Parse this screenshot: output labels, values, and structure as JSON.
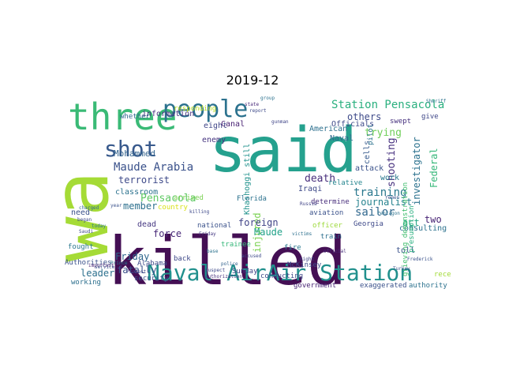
{
  "title": "2019-12",
  "words": [
    {
      "text": "said",
      "color": "#25a18e"
    },
    {
      "text": "killed",
      "color": "#440f54"
    },
    {
      "text": "wa",
      "color": "#a5db36"
    },
    {
      "text": "three",
      "color": "#3aba76"
    },
    {
      "text": "people",
      "color": "#2c728e"
    },
    {
      "text": "shot",
      "color": "#38598c"
    },
    {
      "text": "Naval AirAir Station",
      "color": "#21908d"
    },
    {
      "text": "Station Pensacola",
      "color": "#2ab07f"
    },
    {
      "text": "Maude Arabia",
      "color": "#3b528b"
    },
    {
      "text": "training",
      "color": "#2a788e"
    },
    {
      "text": "sailor",
      "color": "#31688e"
    },
    {
      "text": "shooting",
      "color": "#46307e"
    },
    {
      "text": "death",
      "color": "#472d7b"
    },
    {
      "text": "Pensacola",
      "color": "#5ec962"
    },
    {
      "text": "trying",
      "color": "#6ece58"
    },
    {
      "text": "Mohammed",
      "color": "#33638d"
    },
    {
      "text": "terrorist",
      "color": "#3e4a89"
    },
    {
      "text": "injured",
      "color": "#7ad151"
    },
    {
      "text": "Friday",
      "color": "#31688e"
    },
    {
      "text": "fatally",
      "color": "#3b528b"
    },
    {
      "text": "member",
      "color": "#2d708e"
    },
    {
      "text": "force",
      "color": "#482878"
    },
    {
      "text": "leader",
      "color": "#2d708e"
    },
    {
      "text": "Maude",
      "color": "#1fa188"
    },
    {
      "text": "foreign",
      "color": "#414487"
    },
    {
      "text": "journalist",
      "color": "#26828e"
    },
    {
      "text": "investigator",
      "color": "#2c728e"
    },
    {
      "text": "others",
      "color": "#3e4a89"
    },
    {
      "text": "information",
      "color": "#46327e"
    },
    {
      "text": "enemy",
      "color": "#463480"
    },
    {
      "text": "eight",
      "color": "#404688"
    },
    {
      "text": "classroom",
      "color": "#2c728e"
    },
    {
      "text": "dead",
      "color": "#453781"
    },
    {
      "text": "need",
      "color": "#3b528b"
    },
    {
      "text": "whether",
      "color": "#31688e"
    },
    {
      "text": "Canal",
      "color": "#482173"
    },
    {
      "text": "American",
      "color": "#2d708e"
    },
    {
      "text": "Khashoggi still",
      "color": "#20928c"
    },
    {
      "text": "attack",
      "color": "#3b528b"
    },
    {
      "text": "Iraqi",
      "color": "#3e4989"
    },
    {
      "text": "act",
      "color": "#22a785"
    },
    {
      "text": "two",
      "color": "#482475"
    },
    {
      "text": "Federal",
      "color": "#35b779"
    },
    {
      "text": "consulting",
      "color": "#2c728e"
    },
    {
      "text": "Naval",
      "color": "#30698e"
    },
    {
      "text": "work",
      "color": "#2a788e"
    },
    {
      "text": "cells",
      "color": "#375b8d"
    },
    {
      "text": "Georgia",
      "color": "#3e4989"
    },
    {
      "text": "toll",
      "color": "#3b528b"
    },
    {
      "text": "government",
      "color": "#482475"
    },
    {
      "text": "exaggerated",
      "color": "#3b528b"
    },
    {
      "text": "authority",
      "color": "#2c728e"
    },
    {
      "text": "recently",
      "color": "#a2da37"
    },
    {
      "text": "grieving demonstration",
      "color": "#44bf70"
    },
    {
      "text": "presumption",
      "color": "#29af7f"
    },
    {
      "text": "Officials",
      "color": "#3e4a89"
    },
    {
      "text": "give",
      "color": "#3f4788"
    },
    {
      "text": "swept",
      "color": "#46307e"
    },
    {
      "text": "pilot",
      "color": "#2c728e"
    },
    {
      "text": "relative",
      "color": "#25858e"
    },
    {
      "text": "determine",
      "color": "#472d7b"
    },
    {
      "text": "aviation",
      "color": "#3b528b"
    },
    {
      "text": "officer",
      "color": "#9dd93b"
    },
    {
      "text": "train",
      "color": "#2d708e"
    },
    {
      "text": "fire",
      "color": "#2a788e"
    },
    {
      "text": "McKinsey",
      "color": "#3e4989"
    },
    {
      "text": "Florida",
      "color": "#2c728e"
    },
    {
      "text": "trainee",
      "color": "#35b779"
    },
    {
      "text": "national",
      "color": "#3b528b"
    },
    {
      "text": "Sunday",
      "color": "#414487"
    },
    {
      "text": "conducting",
      "color": "#3e4a89"
    },
    {
      "text": "responding",
      "color": "#bddf26"
    },
    {
      "text": "arrived",
      "color": "#7ad151"
    },
    {
      "text": "country",
      "color": "#d8e219"
    },
    {
      "text": "Alabama",
      "color": "#3e4a89"
    },
    {
      "text": "security",
      "color": "#3b528b"
    },
    {
      "text": "working",
      "color": "#2d708e"
    },
    {
      "text": "Authorities",
      "color": "#3b528b"
    },
    {
      "text": "fought",
      "color": "#2a788e"
    },
    {
      "text": "back",
      "color": "#3e4989"
    },
    {
      "text": "killing",
      "color": "#3e4989"
    },
    {
      "text": "Friday",
      "color": "#453882"
    },
    {
      "text": "base",
      "color": "#2c728e"
    },
    {
      "text": "police",
      "color": "#33638d"
    },
    {
      "text": "gunman",
      "color": "#404688"
    },
    {
      "text": "Saudi",
      "color": "#3e4989"
    },
    {
      "text": "year",
      "color": "#3b528b"
    },
    {
      "text": "today",
      "color": "#2a788e"
    },
    {
      "text": "state",
      "color": "#482878"
    },
    {
      "text": "report",
      "color": "#3e4a89"
    },
    {
      "text": "group",
      "color": "#2c728e"
    },
    {
      "text": "night",
      "color": "#404688"
    },
    {
      "text": "Turkey",
      "color": "#3b528b"
    },
    {
      "text": "official",
      "color": "#472d7b"
    },
    {
      "text": "victims",
      "color": "#2d708e"
    },
    {
      "text": "began",
      "color": "#3e4989"
    },
    {
      "text": "Russia",
      "color": "#414487"
    },
    {
      "text": "Pentagon",
      "color": "#2c728e"
    },
    {
      "text": "Yemen",
      "color": "#3b528b"
    },
    {
      "text": "charged",
      "color": "#31688e"
    },
    {
      "text": "accused",
      "color": "#3e4a89"
    },
    {
      "text": "Sheriff",
      "color": "#2c728e"
    },
    {
      "text": "authorization",
      "color": "#46307e"
    },
    {
      "text": "important",
      "color": "#482475"
    },
    {
      "text": "service",
      "color": "#3b528b"
    },
    {
      "text": "suspect",
      "color": "#3e4989"
    },
    {
      "text": "Prince",
      "color": "#2a788e"
    },
    {
      "text": "Protest",
      "color": "#414487"
    },
    {
      "text": "Frederick",
      "color": "#3b528b"
    }
  ]
}
